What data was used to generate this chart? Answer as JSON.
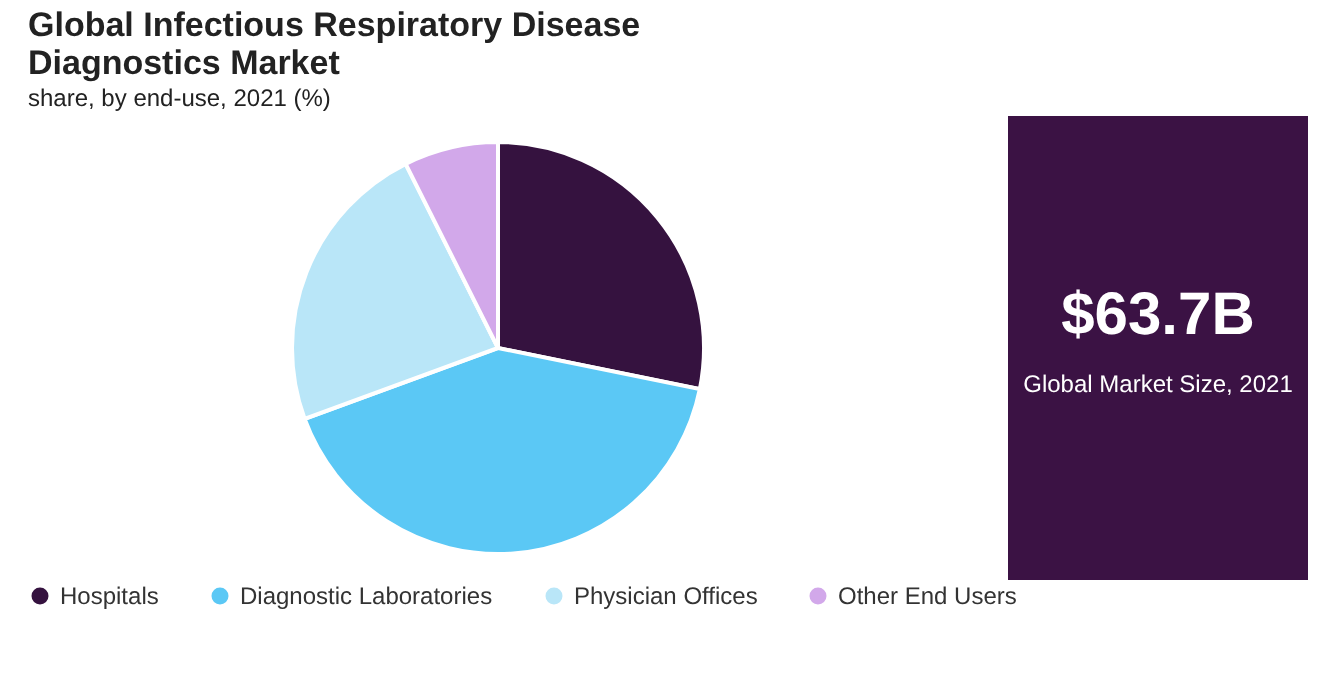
{
  "chart_data": {
    "type": "pie",
    "title": "Global Infectious Respiratory Disease Diagnostics Market",
    "subtitle": "share, by end-use, 2021 (%)",
    "categories": [
      "Hospitals",
      "Diagnostic Laboratories",
      "Physician Offices",
      "Other End Users"
    ],
    "values": [
      28.2,
      41.2,
      23.2,
      7.4
    ],
    "colors": [
      "#35123f",
      "#5bc8f5",
      "#b9e6f8",
      "#d2a8ea"
    ],
    "legend": "bottom",
    "annotations": [
      "$63.7B",
      "Global Market Size, 2021"
    ]
  }
}
